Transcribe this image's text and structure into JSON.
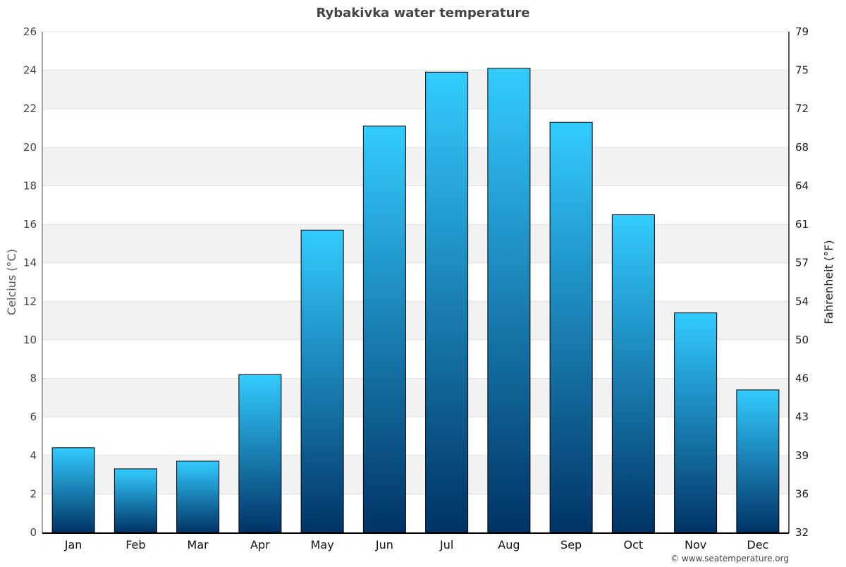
{
  "chart_data": {
    "type": "bar",
    "title": "Rybakivka water temperature",
    "ylabel": "Celcius (°C)",
    "y2label": "Fahrenheit (°F)",
    "categories": [
      "Jan",
      "Feb",
      "Mar",
      "Apr",
      "May",
      "Jun",
      "Jul",
      "Aug",
      "Sep",
      "Oct",
      "Nov",
      "Dec"
    ],
    "values": [
      4.4,
      3.3,
      3.7,
      8.2,
      15.7,
      21.1,
      23.9,
      24.1,
      21.3,
      16.5,
      11.4,
      7.4
    ],
    "ylim": [
      0,
      26
    ],
    "yticks": [
      0,
      2,
      4,
      6,
      8,
      10,
      12,
      14,
      16,
      18,
      20,
      22,
      24,
      26
    ],
    "y2ticks": [
      "32",
      "36",
      "39",
      "43",
      "46",
      "50",
      "54",
      "57",
      "61",
      "64",
      "68",
      "72",
      "75",
      "79"
    ],
    "grid": true,
    "colors": {
      "bar_top": "#33ccff",
      "bar_bottom": "#003366",
      "band": "#f2f2f2"
    }
  },
  "credit": "© www.seatemperature.org"
}
